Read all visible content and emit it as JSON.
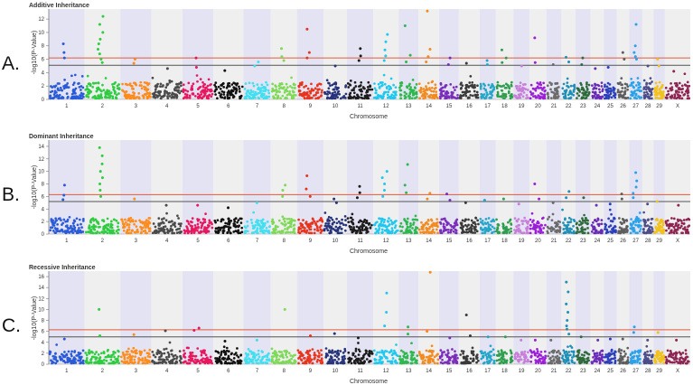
{
  "chart_data": [
    {
      "type": "scatter",
      "panel_letter": "A.",
      "title": "Additive Inheritance",
      "xlabel": "Chromosome",
      "ylabel": "-log10(P-Value)",
      "ylim": [
        0,
        13.5
      ],
      "yticks": [
        0,
        2,
        4,
        6,
        8,
        10,
        12
      ],
      "thresholds": [
        {
          "value": 6.2,
          "color": "#e05a3a"
        },
        {
          "value": 5.1,
          "color": "#555555"
        }
      ],
      "chromosomes": [
        "1",
        "2",
        "3",
        "4",
        "5",
        "6",
        "7",
        "8",
        "9",
        "10",
        "11",
        "12",
        "13",
        "14",
        "15",
        "16",
        "17",
        "18",
        "19",
        "20",
        "21",
        "22",
        "23",
        "24",
        "25",
        "26",
        "27",
        "28",
        "29",
        "X"
      ],
      "peaks": [
        {
          "chrom": "1",
          "values": [
            8.3,
            7.0,
            6.2
          ]
        },
        {
          "chrom": "2",
          "values": [
            12.4,
            11.2,
            10.0,
            9.0,
            8.3,
            7.5,
            6.8,
            6.0,
            5.5
          ]
        },
        {
          "chrom": "3",
          "values": [
            6.0,
            5.4
          ]
        },
        {
          "chrom": "4",
          "values": [
            4.6
          ]
        },
        {
          "chrom": "5",
          "values": [
            6.2,
            4.8
          ]
        },
        {
          "chrom": "6",
          "values": [
            4.3
          ]
        },
        {
          "chrom": "7",
          "values": [
            5.6,
            5.0
          ]
        },
        {
          "chrom": "8",
          "values": [
            7.6,
            6.4,
            5.8
          ]
        },
        {
          "chrom": "9",
          "values": [
            10.5,
            7.0,
            6.2
          ]
        },
        {
          "chrom": "10",
          "values": [
            5.0
          ]
        },
        {
          "chrom": "11",
          "values": [
            7.6,
            6.5,
            5.8
          ]
        },
        {
          "chrom": "12",
          "values": [
            9.7,
            8.6,
            7.4,
            6.5,
            5.8
          ]
        },
        {
          "chrom": "13",
          "values": [
            11.0,
            6.6,
            5.6
          ]
        },
        {
          "chrom": "14",
          "values": [
            13.2,
            7.5,
            6.4,
            5.6
          ]
        },
        {
          "chrom": "15",
          "values": [
            6.2,
            5.2
          ]
        },
        {
          "chrom": "16",
          "values": [
            5.4
          ]
        },
        {
          "chrom": "17",
          "values": [
            5.8,
            5.2
          ]
        },
        {
          "chrom": "18",
          "values": [
            7.4,
            6.2,
            5.5
          ]
        },
        {
          "chrom": "19",
          "values": [
            5.0
          ]
        },
        {
          "chrom": "20",
          "values": [
            9.2,
            5.5
          ]
        },
        {
          "chrom": "21",
          "values": [
            5.2
          ]
        },
        {
          "chrom": "22",
          "values": [
            6.3,
            5.6
          ]
        },
        {
          "chrom": "23",
          "values": [
            6.2,
            5.2
          ]
        },
        {
          "chrom": "24",
          "values": [
            4.6
          ]
        },
        {
          "chrom": "25",
          "values": [
            4.8
          ]
        },
        {
          "chrom": "26",
          "values": [
            7.0,
            6.0
          ]
        },
        {
          "chrom": "27",
          "values": [
            11.2,
            8.0,
            7.0,
            6.4,
            6.0
          ]
        },
        {
          "chrom": "28",
          "values": [
            5.0
          ]
        },
        {
          "chrom": "29",
          "values": [
            6.0,
            5.0
          ]
        },
        {
          "chrom": "X",
          "values": [
            4.2
          ]
        }
      ]
    },
    {
      "type": "scatter",
      "panel_letter": "B.",
      "title": "Dominant Inheritance",
      "xlabel": "Chromosome",
      "ylabel": "-log10(P-Value)",
      "ylim": [
        0,
        15
      ],
      "yticks": [
        0,
        2,
        4,
        6,
        8,
        10,
        12,
        14
      ],
      "thresholds": [
        {
          "value": 6.3,
          "color": "#e05a3a"
        },
        {
          "value": 5.2,
          "color": "#555555"
        }
      ],
      "chromosomes": [
        "1",
        "2",
        "3",
        "4",
        "5",
        "6",
        "7",
        "8",
        "9",
        "10",
        "11",
        "12",
        "13",
        "14",
        "15",
        "16",
        "17",
        "18",
        "19",
        "20",
        "21",
        "22",
        "23",
        "24",
        "25",
        "26",
        "27",
        "28",
        "29",
        "X"
      ],
      "peaks": [
        {
          "chrom": "1",
          "values": [
            7.8,
            6.2,
            5.5
          ]
        },
        {
          "chrom": "2",
          "values": [
            13.8,
            12.5,
            11.2,
            10.0,
            9.0,
            8.0,
            7.0,
            6.0
          ]
        },
        {
          "chrom": "3",
          "values": [
            5.6
          ]
        },
        {
          "chrom": "4",
          "values": [
            4.6
          ]
        },
        {
          "chrom": "5",
          "values": [
            4.6
          ]
        },
        {
          "chrom": "6",
          "values": [
            4.2
          ]
        },
        {
          "chrom": "7",
          "values": [
            5.0
          ]
        },
        {
          "chrom": "8",
          "values": [
            7.8,
            7.0,
            6.0
          ]
        },
        {
          "chrom": "9",
          "values": [
            9.3,
            7.2,
            6.0
          ]
        },
        {
          "chrom": "10",
          "values": [
            5.6,
            5.0
          ]
        },
        {
          "chrom": "11",
          "values": [
            7.6,
            6.6,
            5.8
          ]
        },
        {
          "chrom": "12",
          "values": [
            10.0,
            9.0,
            8.0,
            7.0,
            6.0
          ]
        },
        {
          "chrom": "13",
          "values": [
            11.1,
            7.8,
            6.6
          ]
        },
        {
          "chrom": "14",
          "values": [
            6.5,
            5.6
          ]
        },
        {
          "chrom": "15",
          "values": [
            6.4,
            5.4
          ]
        },
        {
          "chrom": "16",
          "values": [
            5.0
          ]
        },
        {
          "chrom": "17",
          "values": [
            5.4
          ]
        },
        {
          "chrom": "18",
          "values": [
            5.6
          ]
        },
        {
          "chrom": "19",
          "values": [
            4.8
          ]
        },
        {
          "chrom": "20",
          "values": [
            8.0,
            5.6
          ]
        },
        {
          "chrom": "21",
          "values": [
            5.0
          ]
        },
        {
          "chrom": "22",
          "values": [
            6.8,
            5.8
          ]
        },
        {
          "chrom": "23",
          "values": [
            5.8
          ]
        },
        {
          "chrom": "24",
          "values": [
            4.6
          ]
        },
        {
          "chrom": "25",
          "values": [
            4.8
          ]
        },
        {
          "chrom": "26",
          "values": [
            6.4,
            5.6
          ]
        },
        {
          "chrom": "27",
          "values": [
            9.8,
            8.5,
            7.5,
            6.5,
            5.8
          ]
        },
        {
          "chrom": "28",
          "values": [
            4.8
          ]
        },
        {
          "chrom": "29",
          "values": [
            5.2
          ]
        },
        {
          "chrom": "X",
          "values": [
            4.6
          ]
        }
      ]
    },
    {
      "type": "scatter",
      "panel_letter": "C.",
      "title": "Recessive Inheritance",
      "xlabel": "Chromosome",
      "ylabel": "-log10(P-Value)",
      "ylim": [
        0,
        17
      ],
      "yticks": [
        0,
        2,
        4,
        6,
        8,
        10,
        12,
        14,
        16
      ],
      "thresholds": [
        {
          "value": 6.3,
          "color": "#e05a3a"
        },
        {
          "value": 5.0,
          "color": "#555555"
        }
      ],
      "chromosomes": [
        "1",
        "2",
        "3",
        "4",
        "5",
        "6",
        "7",
        "8",
        "9",
        "10",
        "11",
        "12",
        "13",
        "14",
        "15",
        "16",
        "17",
        "18",
        "19",
        "20",
        "21",
        "22",
        "23",
        "24",
        "25",
        "26",
        "27",
        "28",
        "29",
        "X"
      ],
      "peaks": [
        {
          "chrom": "1",
          "values": [
            4.6
          ]
        },
        {
          "chrom": "2",
          "values": [
            10.0,
            5.2
          ]
        },
        {
          "chrom": "3",
          "values": [
            5.4
          ]
        },
        {
          "chrom": "4",
          "values": [
            6.1
          ]
        },
        {
          "chrom": "5",
          "values": [
            6.6,
            6.2
          ]
        },
        {
          "chrom": "6",
          "values": [
            4.2
          ]
        },
        {
          "chrom": "7",
          "values": [
            4.4
          ]
        },
        {
          "chrom": "8",
          "values": [
            10.0
          ]
        },
        {
          "chrom": "9",
          "values": [
            5.2
          ]
        },
        {
          "chrom": "10",
          "values": [
            5.6
          ]
        },
        {
          "chrom": "11",
          "values": [
            4.8
          ]
        },
        {
          "chrom": "12",
          "values": [
            13.0,
            9.5,
            7.0
          ]
        },
        {
          "chrom": "13",
          "values": [
            6.8,
            5.5
          ]
        },
        {
          "chrom": "14",
          "values": [
            16.8,
            6.0
          ]
        },
        {
          "chrom": "15",
          "values": [
            4.8
          ]
        },
        {
          "chrom": "16",
          "values": [
            9.0,
            5.2
          ]
        },
        {
          "chrom": "17",
          "values": [
            5.0
          ]
        },
        {
          "chrom": "18",
          "values": [
            5.0
          ]
        },
        {
          "chrom": "19",
          "values": [
            4.4
          ]
        },
        {
          "chrom": "20",
          "values": [
            4.4
          ]
        },
        {
          "chrom": "21",
          "values": [
            4.4
          ]
        },
        {
          "chrom": "22",
          "values": [
            15.0,
            13.2,
            11.0,
            9.5,
            8.0,
            7.0,
            6.4,
            5.5
          ]
        },
        {
          "chrom": "23",
          "values": [
            5.0
          ]
        },
        {
          "chrom": "24",
          "values": [
            4.4
          ]
        },
        {
          "chrom": "25",
          "values": [
            4.6
          ]
        },
        {
          "chrom": "26",
          "values": [
            4.6
          ]
        },
        {
          "chrom": "27",
          "values": [
            6.8,
            5.8
          ]
        },
        {
          "chrom": "28",
          "values": [
            4.4
          ]
        },
        {
          "chrom": "29",
          "values": [
            5.8
          ]
        },
        {
          "chrom": "X",
          "values": [
            4.4
          ]
        }
      ]
    }
  ],
  "style": {
    "chrom_colors": [
      "#2a5bd7",
      "#2ecc40",
      "#ff8c1a",
      "#4a4a4a",
      "#e8175d",
      "#111111",
      "#3fe0f0",
      "#7ed957",
      "#e8341c",
      "#27337a",
      "#1c1c1c",
      "#1ec8f0",
      "#2db84d",
      "#f28a1f",
      "#7a2db8",
      "#3a3a3a",
      "#24a6c8",
      "#2f9e4f",
      "#c87fd8",
      "#9b1fd8",
      "#6b6b6b",
      "#1f8fb8",
      "#2e6b3a",
      "#6a2bb8",
      "#2b3fb8",
      "#5e5e5e",
      "#2aa2e8",
      "#4d4d8a",
      "#f2c21a",
      "#8e2452"
    ],
    "band_shade": "#e3e3f3",
    "band_plain": "#efefef"
  }
}
